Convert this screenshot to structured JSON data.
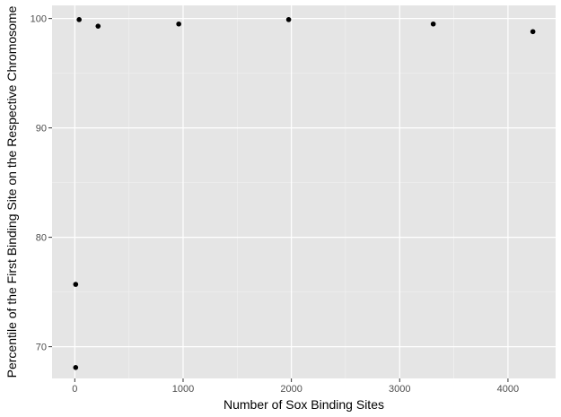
{
  "chart_data": {
    "type": "scatter",
    "title": "",
    "xlabel": "Number of Sox Binding Sites",
    "ylabel": "Percentile of the First Binding Site on the Respective Chromosome",
    "xlim": [
      -210,
      4440
    ],
    "ylim": [
      67.1,
      101.2
    ],
    "x_ticks": [
      0,
      1000,
      2000,
      3000,
      4000
    ],
    "x_tick_labels": [
      "0",
      "1000",
      "2000",
      "3000",
      "4000"
    ],
    "x_minor_ticks": [
      500,
      1500,
      2500,
      3500
    ],
    "y_ticks": [
      70,
      80,
      90,
      100
    ],
    "y_tick_labels": [
      "70",
      "80",
      "90",
      "100"
    ],
    "y_minor_ticks": [
      75,
      85,
      95
    ],
    "grid": true,
    "legend": "none",
    "points": [
      {
        "x": 8,
        "y": 68.1
      },
      {
        "x": 8,
        "y": 75.7
      },
      {
        "x": 40,
        "y": 99.9
      },
      {
        "x": 215,
        "y": 99.3
      },
      {
        "x": 960,
        "y": 99.5
      },
      {
        "x": 1975,
        "y": 99.9
      },
      {
        "x": 3310,
        "y": 99.5
      },
      {
        "x": 4230,
        "y": 98.8
      }
    ],
    "colors": {
      "panel": "#e5e5e5",
      "grid_major": "#ffffff",
      "grid_minor": "#f2f2f2",
      "point": "#000000",
      "tick": "#333333"
    }
  }
}
